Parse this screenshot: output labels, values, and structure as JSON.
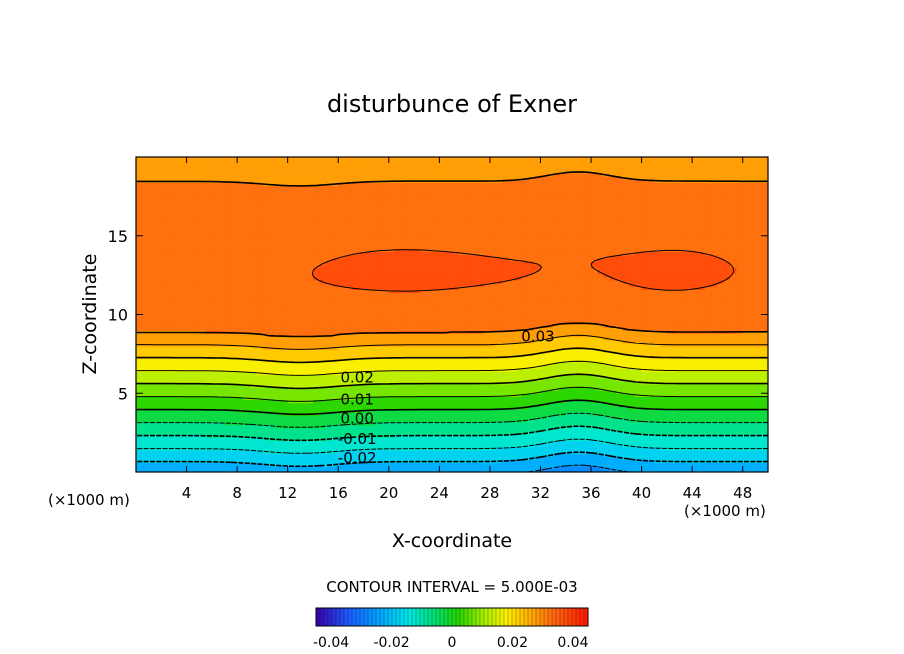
{
  "chart_data": {
    "type": "contour",
    "title": "disturbunce of Exner",
    "xlabel": "X-coordinate",
    "ylabel": "Z-coordinate",
    "x_unit_left": "(×1000 m)",
    "x_unit_right": "(×1000 m)",
    "xlim": [
      0,
      50
    ],
    "ylim": [
      0,
      20
    ],
    "x_ticks": [
      4,
      8,
      12,
      16,
      20,
      24,
      28,
      32,
      36,
      40,
      44,
      48
    ],
    "y_ticks": [
      5,
      10,
      15
    ],
    "contour_interval_text": "CONTOUR INTERVAL = 5.000E-03",
    "contour_interval": 0.005,
    "contour_labels": [
      {
        "text": "0.03",
        "x": 31.8,
        "z": 8.6
      },
      {
        "text": "0.02",
        "x": 17.5,
        "z": 6.0
      },
      {
        "text": "0.01",
        "x": 17.5,
        "z": 4.6
      },
      {
        "text": "0.00",
        "x": 17.5,
        "z": 3.4
      },
      {
        "text": "-0.01",
        "x": 17.5,
        "z": 2.1
      },
      {
        "text": "-0.02",
        "x": 17.5,
        "z": 0.9
      }
    ],
    "field_range": [
      -0.045,
      0.045
    ],
    "colorbar": {
      "ticks": [
        -0.04,
        -0.02,
        0,
        0.02,
        0.04
      ],
      "tick_labels": [
        "-0.04",
        "-0.02",
        "0",
        "0.02",
        "0.04"
      ]
    }
  }
}
